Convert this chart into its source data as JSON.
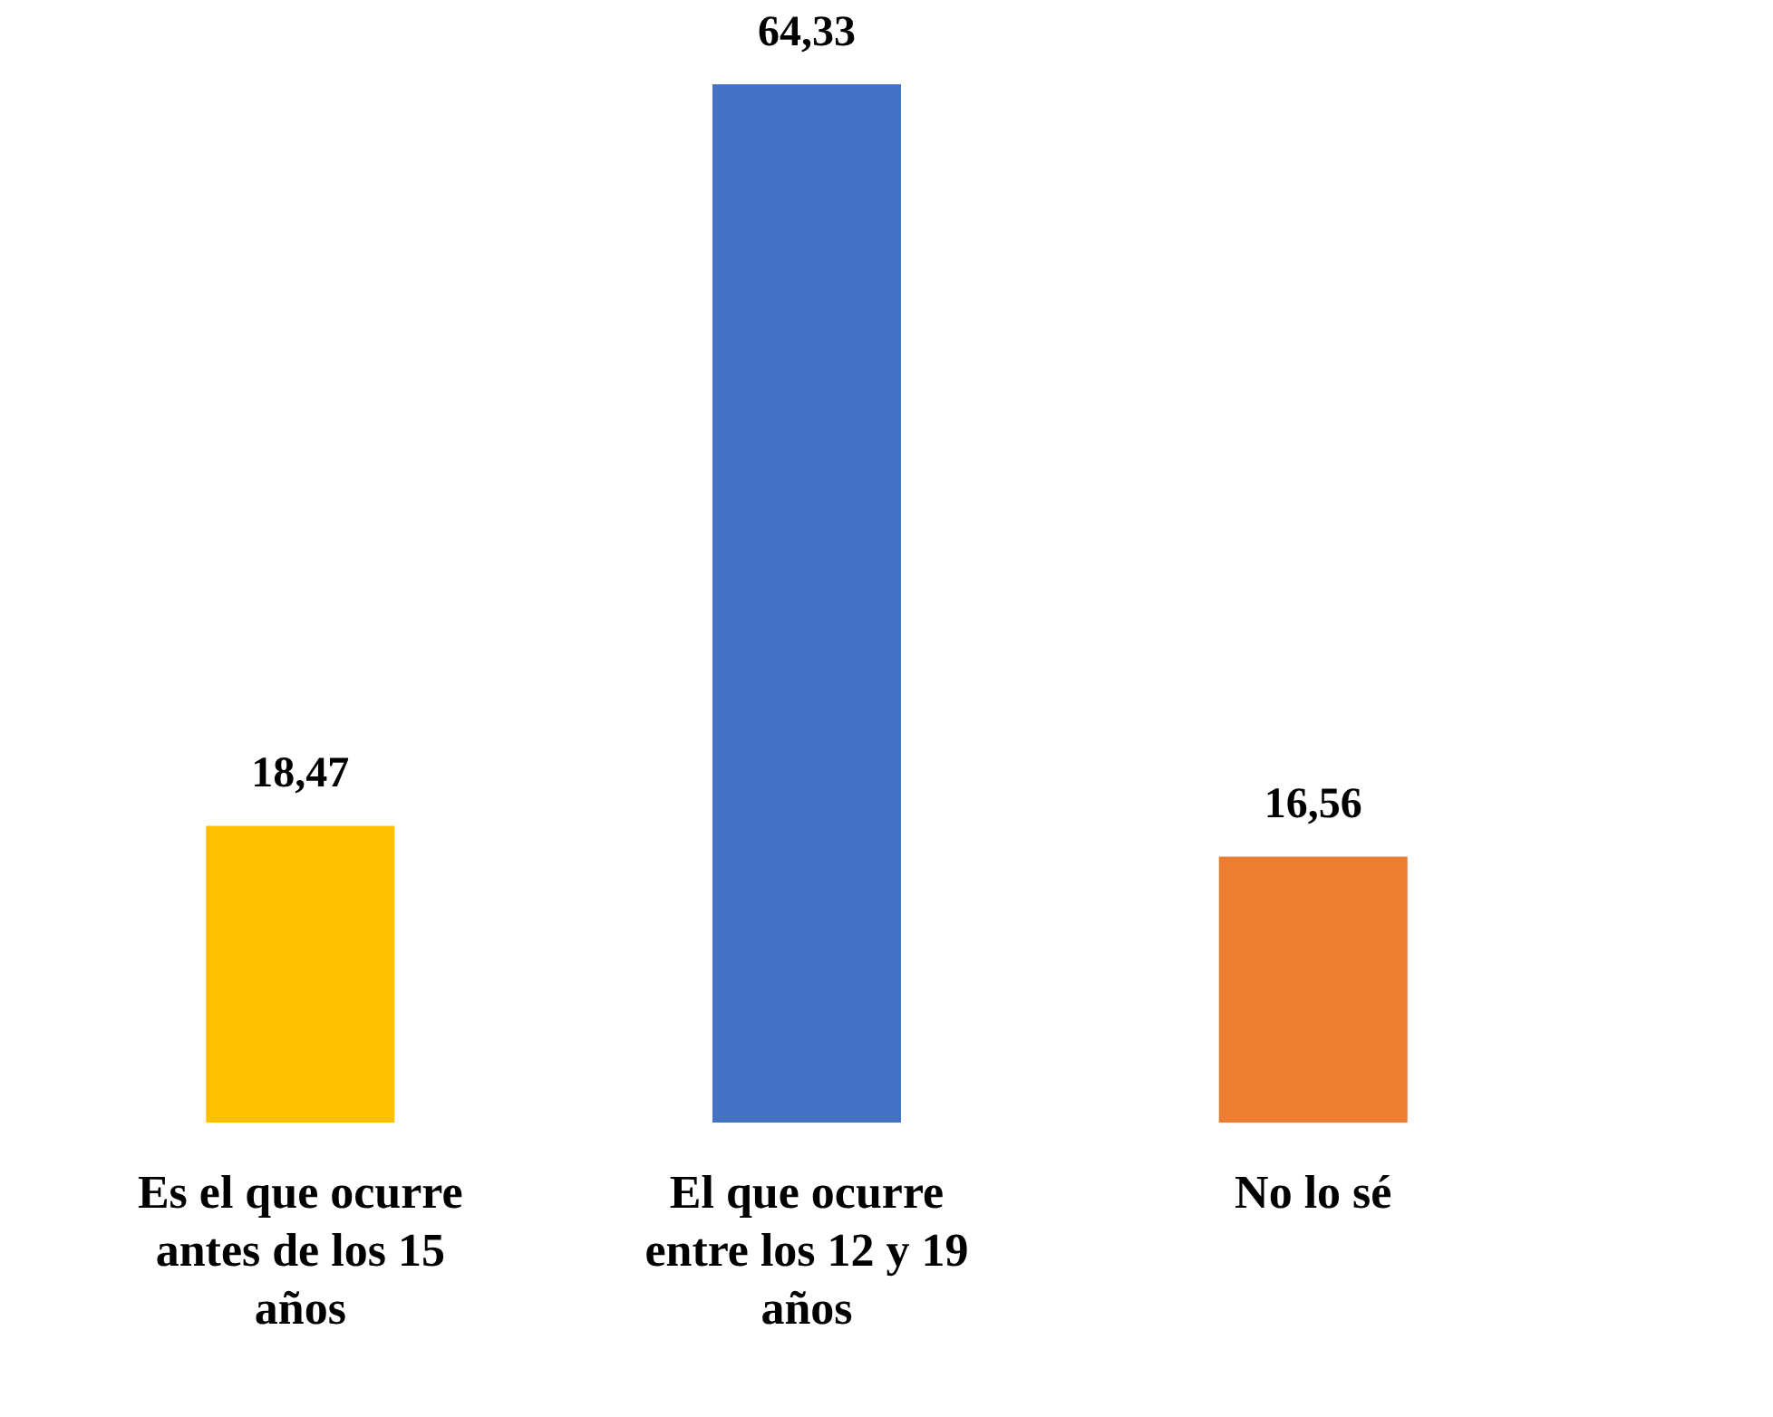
{
  "chart_data": {
    "type": "bar",
    "categories": [
      "Es el que ocurre antes de los 15 años",
      "El que ocurre entre los 12 y 19 años",
      "No lo sé"
    ],
    "values": [
      18.47,
      64.33,
      16.56
    ],
    "colors": [
      "#ffc000",
      "#4472c4",
      "#ed7d31"
    ],
    "value_labels": [
      "18,47",
      "64,33",
      "16,56"
    ]
  }
}
